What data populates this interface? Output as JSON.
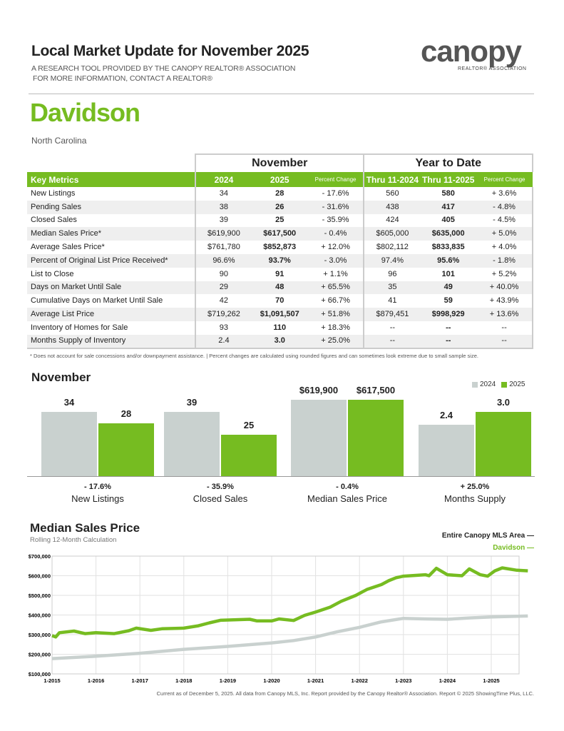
{
  "header": {
    "title": "Local Market Update for November 2025",
    "line1": "A RESEARCH TOOL PROVIDED BY THE CANOPY REALTOR® ASSOCIATION",
    "line2": "FOR MORE INFORMATION, CONTACT A REALTOR®"
  },
  "logo": {
    "word": "canopy",
    "tagline": "REALTOR® ASSOCIATION"
  },
  "area": "Davidson",
  "state": "North Carolina",
  "table": {
    "group_month": "November",
    "group_ytd": "Year to Date",
    "columns": [
      "Key Metrics",
      "2024",
      "2025",
      "Percent Change",
      "Thru 11-2024",
      "Thru 11-2025",
      "Percent Change"
    ],
    "rows": [
      [
        "New Listings",
        "34",
        "28",
        "- 17.6%",
        "560",
        "580",
        "+ 3.6%"
      ],
      [
        "Pending Sales",
        "38",
        "26",
        "- 31.6%",
        "438",
        "417",
        "- 4.8%"
      ],
      [
        "Closed Sales",
        "39",
        "25",
        "- 35.9%",
        "424",
        "405",
        "- 4.5%"
      ],
      [
        "Median Sales Price*",
        "$619,900",
        "$617,500",
        "- 0.4%",
        "$605,000",
        "$635,000",
        "+ 5.0%"
      ],
      [
        "Average Sales Price*",
        "$761,780",
        "$852,873",
        "+ 12.0%",
        "$802,112",
        "$833,835",
        "+ 4.0%"
      ],
      [
        "Percent of Original List Price Received*",
        "96.6%",
        "93.7%",
        "- 3.0%",
        "97.4%",
        "95.6%",
        "- 1.8%"
      ],
      [
        "List to Close",
        "90",
        "91",
        "+ 1.1%",
        "96",
        "101",
        "+ 5.2%"
      ],
      [
        "Days on Market Until Sale",
        "29",
        "48",
        "+ 65.5%",
        "35",
        "49",
        "+ 40.0%"
      ],
      [
        "Cumulative Days on Market Until Sale",
        "42",
        "70",
        "+ 66.7%",
        "41",
        "59",
        "+ 43.9%"
      ],
      [
        "Average List Price",
        "$719,262",
        "$1,091,507",
        "+ 51.8%",
        "$879,451",
        "$998,929",
        "+ 13.6%"
      ],
      [
        "Inventory of Homes for Sale",
        "93",
        "110",
        "+ 18.3%",
        "--",
        "--",
        "--"
      ],
      [
        "Months Supply of Inventory",
        "2.4",
        "3.0",
        "+ 25.0%",
        "--",
        "--",
        "--"
      ]
    ]
  },
  "note": "* Does not account for sale concessions and/or downpayment assistance.  |  Percent changes are calculated using rounded figures and can sometimes look extreme due to small sample size.",
  "colors": {
    "green": "#76bc21",
    "gray": "#c9d1cf"
  },
  "chart_data": [
    {
      "type": "bar",
      "title": "November",
      "legend": [
        "2024",
        "2025"
      ],
      "groups": [
        {
          "label": "New Listings",
          "pct": "- 17.6%",
          "labels": [
            "34",
            "28"
          ],
          "values": [
            34,
            28
          ]
        },
        {
          "label": "Closed Sales",
          "pct": "- 35.9%",
          "labels": [
            "39",
            "25"
          ],
          "values": [
            39,
            25
          ]
        },
        {
          "label": "Median Sales Price",
          "pct": "- 0.4%",
          "labels": [
            "$619,900",
            "$617,500"
          ],
          "values": [
            619900,
            617500
          ]
        },
        {
          "label": "Months Supply",
          "pct": "+ 25.0%",
          "labels": [
            "2.4",
            "3.0"
          ],
          "values": [
            2.4,
            3.0
          ]
        }
      ]
    },
    {
      "type": "line",
      "title": "Median Sales Price",
      "subtitle": "Rolling 12-Month Calculation",
      "ylim": [
        100000,
        700000
      ],
      "yticks": [
        "$100,000",
        "$200,000",
        "$300,000",
        "$400,000",
        "$500,000",
        "$600,000",
        "$700,000"
      ],
      "xticks": [
        "1-2015",
        "1-2016",
        "1-2017",
        "1-2018",
        "1-2019",
        "1-2020",
        "1-2021",
        "1-2022",
        "1-2023",
        "1-2024",
        "1-2025"
      ],
      "series": [
        {
          "name": "Entire Canopy MLS Area",
          "color": "#c9d1cf",
          "points": [
            [
              "2015-01",
              178000
            ],
            [
              "2016-01",
              190000
            ],
            [
              "2017-01",
              205000
            ],
            [
              "2018-01",
              225000
            ],
            [
              "2019-01",
              240000
            ],
            [
              "2020-01",
              258000
            ],
            [
              "2020-07",
              270000
            ],
            [
              "2021-01",
              288000
            ],
            [
              "2021-07",
              315000
            ],
            [
              "2022-01",
              337000
            ],
            [
              "2022-07",
              365000
            ],
            [
              "2023-01",
              383000
            ],
            [
              "2023-07",
              380000
            ],
            [
              "2024-01",
              378000
            ],
            [
              "2024-07",
              385000
            ],
            [
              "2025-01",
              390000
            ],
            [
              "2025-11",
              395000
            ]
          ]
        },
        {
          "name": "Davidson",
          "color": "#76bc21",
          "points": [
            [
              "2015-01",
              295000
            ],
            [
              "2015-02",
              288000
            ],
            [
              "2015-03",
              310000
            ],
            [
              "2015-07",
              318000
            ],
            [
              "2015-10",
              305000
            ],
            [
              "2016-01",
              310000
            ],
            [
              "2016-06",
              305000
            ],
            [
              "2016-10",
              320000
            ],
            [
              "2016-12",
              333000
            ],
            [
              "2017-04",
              322000
            ],
            [
              "2017-07",
              330000
            ],
            [
              "2018-01",
              333000
            ],
            [
              "2018-05",
              345000
            ],
            [
              "2018-08",
              360000
            ],
            [
              "2018-11",
              373000
            ],
            [
              "2019-07",
              378000
            ],
            [
              "2019-09",
              370000
            ],
            [
              "2020-01",
              370000
            ],
            [
              "2020-03",
              380000
            ],
            [
              "2020-07",
              372000
            ],
            [
              "2020-10",
              398000
            ],
            [
              "2021-01",
              415000
            ],
            [
              "2021-05",
              440000
            ],
            [
              "2021-08",
              470000
            ],
            [
              "2021-12",
              500000
            ],
            [
              "2022-03",
              530000
            ],
            [
              "2022-07",
              555000
            ],
            [
              "2022-09",
              575000
            ],
            [
              "2022-11",
              590000
            ],
            [
              "2023-01",
              598000
            ],
            [
              "2023-07",
              605000
            ],
            [
              "2023-08",
              600000
            ],
            [
              "2023-10",
              638000
            ],
            [
              "2024-01",
              605000
            ],
            [
              "2024-05",
              600000
            ],
            [
              "2024-07",
              635000
            ],
            [
              "2024-10",
              605000
            ],
            [
              "2024-12",
              598000
            ],
            [
              "2025-02",
              625000
            ],
            [
              "2025-04",
              640000
            ],
            [
              "2025-08",
              628000
            ],
            [
              "2025-11",
              625000
            ]
          ]
        }
      ]
    }
  ],
  "footer": "Current as of December 5, 2025. All data from Canopy MLS, Inc. Report provided by the Canopy Realtor® Association. Report © 2025 ShowingTime Plus, LLC."
}
